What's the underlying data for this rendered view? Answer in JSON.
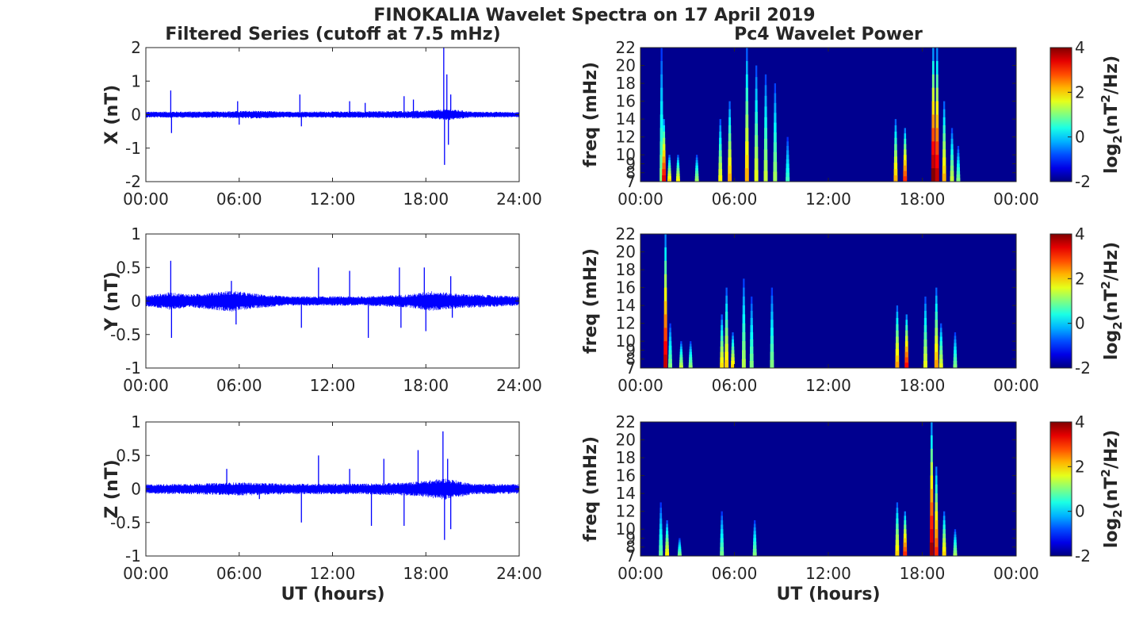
{
  "figure": {
    "title": "FINOKALIA Wavelet Spectra on 17 April 2019",
    "left_column_title": "Filtered Series (cutoff at 7.5 mHz)",
    "right_column_title": "Pc4 Wavelet Power",
    "xlabel": "UT (hours)"
  },
  "chart_data": [
    {
      "type": "line",
      "component": "X",
      "ylabel": "X (nT)",
      "xlim": [
        0,
        24
      ],
      "ylim": [
        -2,
        2
      ],
      "x_ticks": [
        "00:00",
        "06:00",
        "12:00",
        "18:00",
        "24:00"
      ],
      "y_ticks": [
        "2",
        "1",
        "0",
        "-1",
        "-2"
      ],
      "color": "#0000ff",
      "noise_envelope": [
        [
          0,
          0.09
        ],
        [
          5,
          0.1
        ],
        [
          7,
          0.12
        ],
        [
          9,
          0.09
        ],
        [
          14,
          0.1
        ],
        [
          18,
          0.12
        ],
        [
          19.5,
          0.17
        ],
        [
          21,
          0.09
        ],
        [
          24,
          0.08
        ]
      ],
      "spikes": [
        [
          1.6,
          0.72
        ],
        [
          1.65,
          -0.55
        ],
        [
          5.9,
          0.4
        ],
        [
          6.0,
          -0.3
        ],
        [
          9.9,
          0.6
        ],
        [
          10.0,
          -0.35
        ],
        [
          13.1,
          0.4
        ],
        [
          14.1,
          0.35
        ],
        [
          16.6,
          0.55
        ],
        [
          17.2,
          0.45
        ],
        [
          19.15,
          2.0
        ],
        [
          19.2,
          -1.5
        ],
        [
          19.35,
          1.2
        ],
        [
          19.45,
          -0.9
        ],
        [
          19.6,
          0.6
        ]
      ]
    },
    {
      "type": "line",
      "component": "Y",
      "ylabel": "Y (nT)",
      "xlim": [
        0,
        24
      ],
      "ylim": [
        -1,
        1
      ],
      "x_ticks": [
        "00:00",
        "06:00",
        "12:00",
        "18:00",
        "24:00"
      ],
      "y_ticks": [
        "1",
        "0.5",
        "0",
        "-0.5",
        "-1"
      ],
      "color": "#0000ff",
      "noise_envelope": [
        [
          0,
          0.08
        ],
        [
          1.5,
          0.13
        ],
        [
          3,
          0.1
        ],
        [
          5.5,
          0.16
        ],
        [
          7,
          0.11
        ],
        [
          9,
          0.07
        ],
        [
          14,
          0.07
        ],
        [
          17,
          0.1
        ],
        [
          18.3,
          0.15
        ],
        [
          20,
          0.11
        ],
        [
          24,
          0.07
        ]
      ],
      "spikes": [
        [
          1.6,
          0.6
        ],
        [
          1.65,
          -0.55
        ],
        [
          5.5,
          0.3
        ],
        [
          5.8,
          -0.35
        ],
        [
          10.0,
          -0.4
        ],
        [
          11.1,
          0.5
        ],
        [
          13.1,
          0.45
        ],
        [
          14.3,
          -0.55
        ],
        [
          16.3,
          0.5
        ],
        [
          16.4,
          -0.4
        ],
        [
          17.9,
          0.5
        ],
        [
          18.0,
          -0.45
        ],
        [
          19.6,
          0.37
        ],
        [
          19.7,
          -0.25
        ]
      ]
    },
    {
      "type": "line",
      "component": "Z",
      "ylabel": "Z (nT)",
      "xlim": [
        0,
        24
      ],
      "ylim": [
        -1,
        1
      ],
      "x_ticks": [
        "00:00",
        "06:00",
        "12:00",
        "18:00",
        "24:00"
      ],
      "y_ticks": [
        "1",
        "0.5",
        "0",
        "-0.5",
        "-1"
      ],
      "color": "#0000ff",
      "noise_envelope": [
        [
          0,
          0.07
        ],
        [
          3,
          0.08
        ],
        [
          6,
          0.1
        ],
        [
          9,
          0.08
        ],
        [
          14,
          0.08
        ],
        [
          17,
          0.1
        ],
        [
          19.3,
          0.16
        ],
        [
          21,
          0.08
        ],
        [
          24,
          0.07
        ]
      ],
      "spikes": [
        [
          5.2,
          0.3
        ],
        [
          7.3,
          -0.15
        ],
        [
          10.0,
          -0.5
        ],
        [
          11.1,
          0.5
        ],
        [
          13.1,
          0.3
        ],
        [
          14.5,
          -0.55
        ],
        [
          15.3,
          0.45
        ],
        [
          16.6,
          -0.55
        ],
        [
          17.5,
          0.58
        ],
        [
          19.1,
          0.86
        ],
        [
          19.2,
          -0.76
        ],
        [
          19.4,
          0.45
        ],
        [
          19.6,
          -0.6
        ]
      ]
    },
    {
      "type": "heatmap",
      "component": "X",
      "ylabel": "freq (mHz)",
      "xlim": [
        0,
        24
      ],
      "ylim": [
        7,
        22
      ],
      "x_ticks": [
        "00:00",
        "06:00",
        "12:00",
        "18:00",
        "00:00"
      ],
      "y_ticks": [
        "22",
        "20",
        "18",
        "16",
        "14",
        "12",
        "10",
        "9",
        "8",
        "7"
      ],
      "colorbar": {
        "label_main": "log",
        "label_sub": "2",
        "label_rest": "(nT",
        "label_sup": "2",
        "label_end": "/Hz)",
        "range": [
          -2,
          4
        ],
        "ticks": [
          "4",
          "2",
          "0",
          "-2"
        ]
      },
      "background_color": "#00008f",
      "streaks": [
        [
          1.35,
          22,
          1.0
        ],
        [
          1.5,
          14,
          3.4
        ],
        [
          1.85,
          10,
          2.0
        ],
        [
          2.4,
          10,
          1.8
        ],
        [
          3.6,
          10,
          1.2
        ],
        [
          5.1,
          14,
          1.7
        ],
        [
          5.7,
          16,
          2.2
        ],
        [
          6.8,
          22,
          2.2
        ],
        [
          7.4,
          20,
          1.6
        ],
        [
          8.0,
          19,
          1.4
        ],
        [
          8.6,
          18,
          1.2
        ],
        [
          9.4,
          12,
          0.6
        ],
        [
          16.3,
          14,
          2.2
        ],
        [
          16.9,
          13,
          3.0
        ],
        [
          18.7,
          22,
          4.0
        ],
        [
          18.95,
          22,
          3.6
        ],
        [
          19.4,
          16,
          2.2
        ],
        [
          19.9,
          13,
          1.4
        ],
        [
          20.3,
          11,
          1.0
        ]
      ]
    },
    {
      "type": "heatmap",
      "component": "Y",
      "ylabel": "freq (mHz)",
      "xlim": [
        0,
        24
      ],
      "ylim": [
        7,
        22
      ],
      "x_ticks": [
        "00:00",
        "06:00",
        "12:00",
        "18:00",
        "00:00"
      ],
      "y_ticks": [
        "22",
        "20",
        "18",
        "16",
        "14",
        "12",
        "10",
        "9",
        "8",
        "7"
      ],
      "colorbar": {
        "label_main": "log",
        "label_sub": "2",
        "label_rest": "(nT",
        "label_sup": "2",
        "label_end": "/Hz)",
        "range": [
          -2,
          4
        ],
        "ticks": [
          "4",
          "2",
          "0",
          "-2"
        ]
      },
      "background_color": "#00008f",
      "streaks": [
        [
          1.6,
          22,
          3.6
        ],
        [
          1.9,
          12,
          1.0
        ],
        [
          2.6,
          10,
          1.4
        ],
        [
          3.2,
          10,
          1.1
        ],
        [
          5.2,
          13,
          1.9
        ],
        [
          5.5,
          16,
          2.0
        ],
        [
          5.9,
          11,
          2.0
        ],
        [
          6.6,
          17,
          1.3
        ],
        [
          7.1,
          15,
          1.0
        ],
        [
          8.4,
          16,
          1.0
        ],
        [
          16.4,
          14,
          2.3
        ],
        [
          17.0,
          13,
          3.2
        ],
        [
          18.2,
          15,
          1.6
        ],
        [
          18.9,
          16,
          2.3
        ],
        [
          19.2,
          12,
          1.6
        ],
        [
          20.1,
          11,
          1.0
        ]
      ]
    },
    {
      "type": "heatmap",
      "component": "Z",
      "ylabel": "freq (mHz)",
      "xlim": [
        0,
        24
      ],
      "ylim": [
        7,
        22
      ],
      "x_ticks": [
        "00:00",
        "06:00",
        "12:00",
        "18:00",
        "00:00"
      ],
      "y_ticks": [
        "22",
        "20",
        "18",
        "16",
        "14",
        "12",
        "10",
        "9",
        "8",
        "7"
      ],
      "colorbar": {
        "label_main": "log",
        "label_sub": "2",
        "label_rest": "(nT",
        "label_sup": "2",
        "label_end": "/Hz)",
        "range": [
          -2,
          4
        ],
        "ticks": [
          "4",
          "2",
          "0",
          "-2"
        ]
      },
      "background_color": "#00008f",
      "streaks": [
        [
          1.3,
          13,
          0.8
        ],
        [
          1.7,
          11,
          1.8
        ],
        [
          2.5,
          9,
          1.0
        ],
        [
          5.2,
          12,
          0.9
        ],
        [
          7.3,
          11,
          1.0
        ],
        [
          16.4,
          13,
          2.0
        ],
        [
          16.9,
          12,
          3.0
        ],
        [
          18.6,
          22,
          3.8
        ],
        [
          18.9,
          17,
          3.0
        ],
        [
          19.4,
          12,
          2.0
        ],
        [
          20.1,
          10,
          1.2
        ]
      ]
    }
  ]
}
